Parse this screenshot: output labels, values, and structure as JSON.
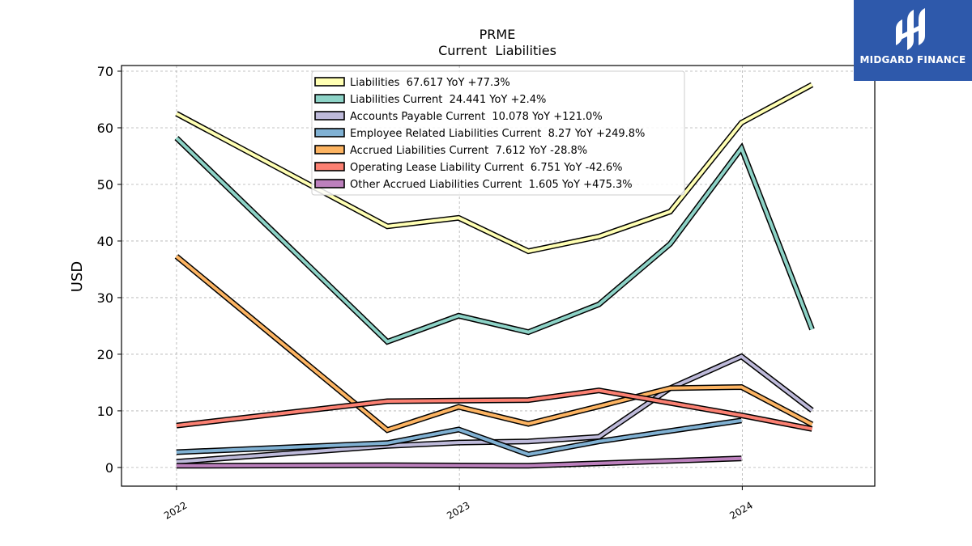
{
  "brand": {
    "name": "MIDGARD FINANCE",
    "logo_icon": "midgard-logo-icon",
    "bg_color": "#2e59ab"
  },
  "chart_data": {
    "type": "line",
    "title": "PRME",
    "subtitle": "Current  Liabilities",
    "xlabel": "",
    "ylabel": "USD",
    "ylim": [
      -3.3,
      71
    ],
    "yticks": [
      0,
      10,
      20,
      30,
      40,
      50,
      60,
      70
    ],
    "xlim": [
      "2021-10-22",
      "2024-06-20"
    ],
    "xticks": [
      {
        "date": "2022-01-01",
        "label": "2022"
      },
      {
        "date": "2023-01-01",
        "label": "2023"
      },
      {
        "date": "2024-01-01",
        "label": "2024"
      }
    ],
    "grid": true,
    "legend_position": "upper-center",
    "x": [
      "2022-01-01",
      "2022-09-30",
      "2022-12-31",
      "2023-03-31",
      "2023-06-30",
      "2023-09-30",
      "2023-12-31",
      "2024-03-31"
    ],
    "series": [
      {
        "name": "Liabilities",
        "legend": "Liabilities  67.617 YoY +77.3%",
        "color": "#ffffb3",
        "values": [
          62.5,
          42.6,
          44.1,
          38.2,
          40.8,
          45.2,
          60.9,
          67.6
        ]
      },
      {
        "name": "Liabilities Current",
        "legend": "Liabilities Current  24.441 YoY +2.4%",
        "color": "#8dd3c7",
        "values": [
          58.2,
          22.2,
          26.8,
          23.9,
          28.8,
          39.5,
          56.4,
          24.4
        ]
      },
      {
        "name": "Accounts Payable Current",
        "legend": "Accounts Payable Current  10.078 YoY +121.0%",
        "color": "#bebada",
        "values": [
          1.0,
          3.8,
          4.4,
          4.6,
          5.4,
          14.0,
          19.6,
          10.1
        ]
      },
      {
        "name": "Employee Related Liabilities Current",
        "legend": "Employee Related Liabilities Current  8.27 YoY +249.8%",
        "color": "#80b1d3",
        "values": [
          2.7,
          4.3,
          6.7,
          2.3,
          4.6,
          null,
          8.3,
          null
        ]
      },
      {
        "name": "Accrued Liabilities Current",
        "legend": "Accrued Liabilities Current  7.612 YoY -28.8%",
        "color": "#fdb462",
        "values": [
          37.3,
          6.6,
          10.7,
          7.7,
          10.8,
          14.0,
          14.2,
          7.6
        ]
      },
      {
        "name": "Operating Lease Liability Current",
        "legend": "Operating Lease Liability Current  6.751 YoY -42.6%",
        "color": "#fb8072",
        "values": [
          7.4,
          11.7,
          11.8,
          11.9,
          13.6,
          null,
          9.2,
          6.8
        ]
      },
      {
        "name": "Other Accrued Liabilities Current",
        "legend": "Other Accrued Liabilities Current  1.605 YoY +475.3%",
        "color": "#bc80bd",
        "values": [
          0.3,
          0.4,
          null,
          0.3,
          null,
          null,
          1.6,
          null
        ]
      }
    ]
  }
}
